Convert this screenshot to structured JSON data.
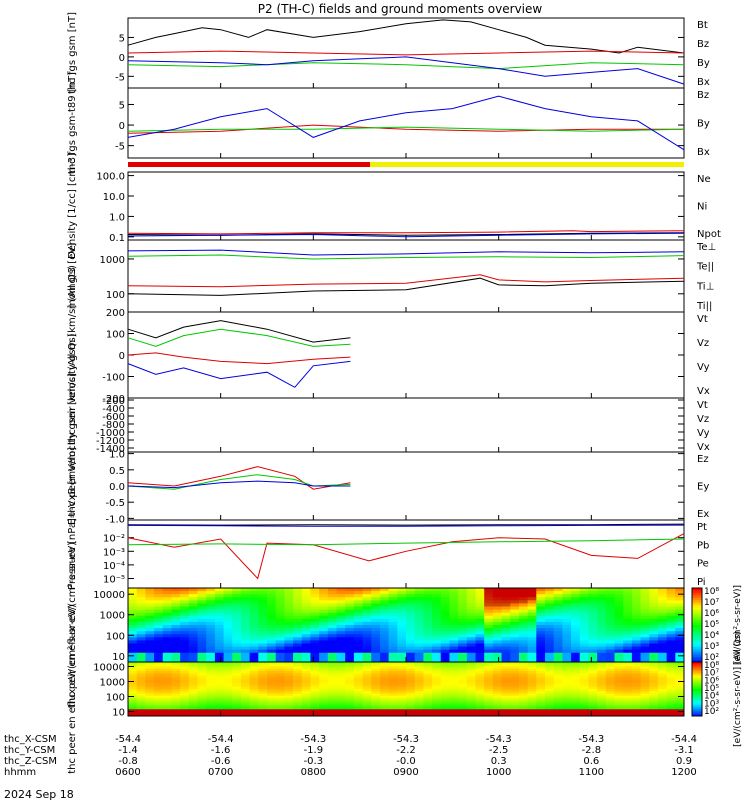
{
  "title": "P2 (TH-C) fields and ground moments overview",
  "date_label": "2024 Sep 18",
  "colors": {
    "black": "#000000",
    "red": "#e00000",
    "green": "#00c800",
    "blue": "#0000e0",
    "yellow": "#f0f000"
  },
  "x_ticks": [
    "0600",
    "0700",
    "0800",
    "0900",
    "1000",
    "1100",
    "1200"
  ],
  "x_axis_rows": [
    {
      "label": "thc_X-CSM",
      "values": [
        "-54.4",
        "-54.4",
        "-54.3",
        "-54.3",
        "-54.3",
        "-54.3",
        "-54.4"
      ]
    },
    {
      "label": "thc_Y-CSM",
      "values": [
        "-1.4",
        "-1.6",
        "-1.9",
        "-2.2",
        "-2.5",
        "-2.8",
        "-3.1"
      ]
    },
    {
      "label": "thc_Z-CSM",
      "values": [
        "-0.8",
        "-0.6",
        "-0.3",
        "-0.0",
        "0.3",
        "0.6",
        "0.9"
      ]
    },
    {
      "label": "hhmm",
      "values": [
        "0600",
        "0700",
        "0800",
        "0900",
        "1000",
        "1100",
        "1200"
      ]
    }
  ],
  "colorbar": {
    "ticks": [
      "10⁸",
      "10⁷",
      "10⁶",
      "10⁵",
      "10⁴",
      "10³",
      "10²"
    ],
    "ticks2": [
      "10⁸",
      "10⁷",
      "10⁶",
      "10⁵",
      "10⁴",
      "10³",
      "10²"
    ],
    "label": "[eV/(cm²-s-sr-eV)]",
    "label2": "[eV/(cm²-s-sr-eV)] (All Qs)"
  },
  "chart_data": [
    {
      "type": "line",
      "ylabel": "thc fgs gsm [nT]",
      "yticks": [
        "5",
        "0",
        "-5"
      ],
      "ylim": [
        -8,
        10
      ],
      "legend": [
        {
          "name": "Bt",
          "color": "#000000"
        },
        {
          "name": "Bz",
          "color": "#e00000"
        },
        {
          "name": "By",
          "color": "#00c800"
        },
        {
          "name": "Bx",
          "color": "#0000e0"
        }
      ],
      "series": [
        {
          "name": "Bt",
          "color": "#000000",
          "x": [
            6.0,
            6.3,
            6.5,
            6.8,
            7.0,
            7.3,
            7.5,
            8.0,
            8.5,
            9.0,
            9.4,
            9.7,
            10.0,
            10.3,
            10.5,
            11.0,
            11.3,
            11.5,
            12.0
          ],
          "y": [
            3,
            5,
            6,
            7.5,
            7,
            5,
            7,
            5,
            6.5,
            8.5,
            9.5,
            9,
            7,
            5,
            3,
            2,
            1,
            2.5,
            1
          ]
        },
        {
          "name": "Bz",
          "color": "#e00000",
          "x": [
            6.0,
            7.0,
            8.0,
            9.0,
            10.0,
            11.0,
            12.0
          ],
          "y": [
            1,
            1.5,
            1,
            0.5,
            1,
            1.5,
            1
          ]
        },
        {
          "name": "By",
          "color": "#00c800",
          "x": [
            6.0,
            7.0,
            8.0,
            9.0,
            10.0,
            11.0,
            12.0
          ],
          "y": [
            -2,
            -2.5,
            -1.5,
            -2,
            -3,
            -1.5,
            -2
          ]
        },
        {
          "name": "Bx",
          "color": "#0000e0",
          "x": [
            6.0,
            7.0,
            7.5,
            8.0,
            9.0,
            9.5,
            10.0,
            10.5,
            11.0,
            11.5,
            12.0
          ],
          "y": [
            -1,
            -1.5,
            -2,
            -1,
            0,
            -1.5,
            -3,
            -5,
            -4,
            -3,
            -7
          ]
        }
      ]
    },
    {
      "type": "line",
      "ylabel": "thc fgs gsm-t89 [nT]",
      "yticks": [
        "5",
        "0",
        "-5"
      ],
      "ylim": [
        -8,
        9
      ],
      "legend": [
        {
          "name": "Bz",
          "color": "#e00000"
        },
        {
          "name": "By",
          "color": "#00c800"
        },
        {
          "name": "Bx",
          "color": "#0000e0"
        }
      ],
      "series": [
        {
          "name": "Bz",
          "color": "#e00000",
          "x": [
            6.0,
            7.0,
            8.0,
            9.0,
            10.0,
            11.0,
            12.0
          ],
          "y": [
            -2,
            -1.5,
            0,
            -1,
            -1.5,
            -1,
            -1
          ]
        },
        {
          "name": "By",
          "color": "#00c800",
          "x": [
            6.0,
            7.0,
            8.0,
            9.0,
            10.0,
            11.0,
            12.0
          ],
          "y": [
            -1.5,
            -1,
            -1,
            -0.5,
            -1,
            -1.5,
            -1
          ]
        },
        {
          "name": "Bx",
          "color": "#0000e0",
          "x": [
            6.0,
            6.5,
            7.0,
            7.5,
            8.0,
            8.5,
            9.0,
            9.5,
            10.0,
            10.5,
            11.0,
            11.5,
            12.0
          ],
          "y": [
            -3,
            -1,
            2,
            4,
            -3,
            1,
            3,
            4,
            7,
            4,
            2,
            1,
            -6
          ]
        }
      ]
    },
    {
      "type": "line",
      "ylabel": "Density [1/cc] [cm-3]",
      "log": true,
      "yticks": [
        "100.0",
        "10.0",
        "1.0",
        "0.1"
      ],
      "ylim": [
        0.07,
        150
      ],
      "legend": [
        {
          "name": "Ne",
          "color": "#e00000"
        },
        {
          "name": "Ni",
          "color": "#000000"
        },
        {
          "name": "Npot",
          "color": "#0000e0"
        }
      ],
      "series": [
        {
          "name": "Ne",
          "color": "#e00000",
          "x": [
            6.0,
            7.0,
            8.0,
            9.0,
            10.0,
            10.8,
            11.0,
            12.0
          ],
          "y": [
            0.15,
            0.14,
            0.16,
            0.16,
            0.17,
            0.2,
            0.18,
            0.2
          ]
        },
        {
          "name": "Ni",
          "color": "#000000",
          "x": [
            6.0,
            7.0,
            8.0,
            9.0,
            10.0,
            11.0,
            12.0
          ],
          "y": [
            0.13,
            0.12,
            0.14,
            0.12,
            0.13,
            0.15,
            0.16
          ]
        },
        {
          "name": "Npot",
          "color": "#0000e0",
          "x": [
            6.0,
            7.0,
            8.0,
            9.0,
            10.0,
            11.0,
            12.0
          ],
          "y": [
            0.11,
            0.12,
            0.13,
            0.1,
            0.12,
            0.14,
            0.15
          ]
        }
      ]
    },
    {
      "type": "line",
      "ylabel": "momgt3 [eV]",
      "log": true,
      "yticks": [
        "1000",
        "100"
      ],
      "ylim": [
        30,
        3500
      ],
      "legend": [
        {
          "name": "Te⊥",
          "color": "#e00000"
        },
        {
          "name": "Te||",
          "color": "#000000"
        },
        {
          "name": "Ti⊥",
          "color": "#0000e0"
        },
        {
          "name": "Ti||",
          "color": "#00c800"
        }
      ],
      "series": [
        {
          "name": "Te⊥",
          "color": "#e00000",
          "x": [
            6.0,
            7.0,
            8.0,
            9.0,
            9.8,
            10.0,
            10.5,
            11.0,
            12.0
          ],
          "y": [
            170,
            160,
            190,
            200,
            350,
            250,
            220,
            240,
            280
          ]
        },
        {
          "name": "Te||",
          "color": "#000000",
          "x": [
            6.0,
            7.0,
            8.0,
            9.0,
            9.8,
            10.0,
            10.5,
            11.0,
            12.0
          ],
          "y": [
            100,
            90,
            120,
            130,
            280,
            180,
            170,
            200,
            230
          ]
        },
        {
          "name": "Ti⊥",
          "color": "#0000e0",
          "x": [
            6.0,
            7.0,
            8.0,
            9.0,
            10.0,
            11.0,
            12.0
          ],
          "y": [
            1700,
            1800,
            1300,
            1400,
            1600,
            1500,
            1600
          ]
        },
        {
          "name": "Ti||",
          "color": "#00c800",
          "x": [
            6.0,
            7.0,
            8.0,
            9.0,
            10.0,
            11.0,
            12.0
          ],
          "y": [
            1200,
            1300,
            1000,
            1100,
            1150,
            1100,
            1250
          ]
        }
      ]
    },
    {
      "type": "line",
      "ylabel": "thc peir velocity gsm [km/s] (All Qs)",
      "yticks": [
        "200",
        "100",
        "0",
        "-100",
        "-200"
      ],
      "ylim": [
        -200,
        200
      ],
      "legend": [
        {
          "name": "Vt",
          "color": "#000000"
        },
        {
          "name": "Vz",
          "color": "#e00000"
        },
        {
          "name": "Vy",
          "color": "#00c800"
        },
        {
          "name": "Vx",
          "color": "#0000e0"
        }
      ],
      "series": [
        {
          "name": "Vt",
          "color": "#000000",
          "x": [
            6.0,
            6.3,
            6.6,
            7.0,
            7.5,
            8.0,
            8.4
          ],
          "y": [
            120,
            80,
            130,
            160,
            120,
            60,
            80
          ]
        },
        {
          "name": "Vz",
          "color": "#e00000",
          "x": [
            6.0,
            6.3,
            6.6,
            7.0,
            7.5,
            8.0,
            8.4
          ],
          "y": [
            0,
            10,
            -10,
            -30,
            -40,
            -20,
            -10
          ]
        },
        {
          "name": "Vy",
          "color": "#00c800",
          "x": [
            6.0,
            6.3,
            6.6,
            7.0,
            7.5,
            8.0,
            8.4
          ],
          "y": [
            80,
            40,
            90,
            120,
            90,
            40,
            50
          ]
        },
        {
          "name": "Vx",
          "color": "#0000e0",
          "x": [
            6.0,
            6.3,
            6.6,
            7.0,
            7.5,
            7.8,
            8.0,
            8.4
          ],
          "y": [
            -40,
            -90,
            -60,
            -110,
            -80,
            -150,
            -50,
            -30
          ]
        }
      ]
    },
    {
      "type": "line",
      "ylabel": "thc peer velocity gsm [km/s] (All Qs)",
      "yticks": [
        "-200",
        "-400",
        "-600",
        "-800",
        "-1000",
        "-1200",
        "-1400"
      ],
      "ylim": [
        -1500,
        -150
      ],
      "legend": [
        {
          "name": "Vt",
          "color": "#000000"
        },
        {
          "name": "Vz",
          "color": "#e00000"
        },
        {
          "name": "Vy",
          "color": "#00c800"
        },
        {
          "name": "Vx",
          "color": "#0000e0"
        }
      ],
      "series": []
    },
    {
      "type": "line",
      "ylabel": "E=-VxB [mV/m]",
      "yticks": [
        "1.0",
        "0.5",
        "0.0",
        "-0.5",
        "-1.0"
      ],
      "ylim": [
        -1.05,
        1.05
      ],
      "legend": [
        {
          "name": "Ez",
          "color": "#e00000"
        },
        {
          "name": "Ey",
          "color": "#00c800"
        },
        {
          "name": "Ex",
          "color": "#0000e0"
        }
      ],
      "series": [
        {
          "name": "Ez",
          "color": "#e00000",
          "x": [
            6.0,
            6.5,
            7.0,
            7.4,
            7.8,
            8.0,
            8.4
          ],
          "y": [
            0.1,
            0.0,
            0.3,
            0.6,
            0.3,
            -0.1,
            0.1
          ]
        },
        {
          "name": "Ey",
          "color": "#00c800",
          "x": [
            6.0,
            6.5,
            7.0,
            7.4,
            7.8,
            8.0,
            8.4
          ],
          "y": [
            0.0,
            -0.1,
            0.2,
            0.35,
            0.2,
            0.0,
            0.05
          ]
        },
        {
          "name": "Ex",
          "color": "#0000e0",
          "x": [
            6.0,
            6.5,
            7.0,
            7.4,
            7.8,
            8.0,
            8.4
          ],
          "y": [
            0.0,
            -0.05,
            0.1,
            0.15,
            0.1,
            0.0,
            0.0
          ]
        }
      ]
    },
    {
      "type": "line",
      "ylabel": "Pressure [nPa]",
      "log": true,
      "yticks": [
        "10⁻²",
        "10⁻³",
        "10⁻⁴",
        "10⁻⁵"
      ],
      "ylim": [
        2e-06,
        0.2
      ],
      "legend": [
        {
          "name": "Pt",
          "color": "#000000"
        },
        {
          "name": "Pb",
          "color": "#e00000"
        },
        {
          "name": "Pe",
          "color": "#00c800"
        },
        {
          "name": "Pi",
          "color": "#0000e0"
        }
      ],
      "series": [
        {
          "name": "Pt",
          "color": "#000000",
          "x": [
            6.0,
            7.0,
            8.0,
            9.0,
            10.0,
            11.0,
            12.0
          ],
          "y": [
            0.09,
            0.085,
            0.09,
            0.085,
            0.09,
            0.09,
            0.1
          ]
        },
        {
          "name": "Pb",
          "color": "#e00000",
          "x": [
            6.0,
            6.5,
            7.0,
            7.4,
            7.5,
            8.0,
            8.6,
            9.0,
            9.5,
            10.0,
            10.5,
            11.0,
            11.5,
            12.0
          ],
          "y": [
            0.01,
            0.002,
            0.008,
            1e-05,
            0.004,
            0.003,
            0.0002,
            0.001,
            0.005,
            0.01,
            0.008,
            0.0005,
            0.0003,
            0.02
          ]
        },
        {
          "name": "Pe",
          "color": "#00c800",
          "x": [
            6.0,
            7.0,
            8.0,
            9.0,
            10.0,
            11.0,
            12.0
          ],
          "y": [
            0.003,
            0.0035,
            0.003,
            0.004,
            0.005,
            0.006,
            0.008
          ]
        },
        {
          "name": "Pi",
          "color": "#0000e0",
          "x": [
            6.0,
            7.0,
            8.0,
            9.0,
            10.0,
            11.0,
            12.0
          ],
          "y": [
            0.08,
            0.075,
            0.07,
            0.07,
            0.075,
            0.08,
            0.085
          ]
        }
      ]
    },
    {
      "type": "heatmap",
      "ylabel": "thc peir en eflux eV/(cm²-s-sr-eV)",
      "log": true,
      "yticks": [
        "10000",
        "1000",
        "100",
        "10"
      ],
      "ylim": [
        5,
        20000
      ]
    },
    {
      "type": "heatmap",
      "ylabel": "thc peer en eflux eV/(cm²-s-sr-eV)",
      "log": true,
      "yticks": [
        "10000",
        "1000",
        "100",
        "10"
      ],
      "ylim": [
        5,
        20000
      ]
    }
  ]
}
